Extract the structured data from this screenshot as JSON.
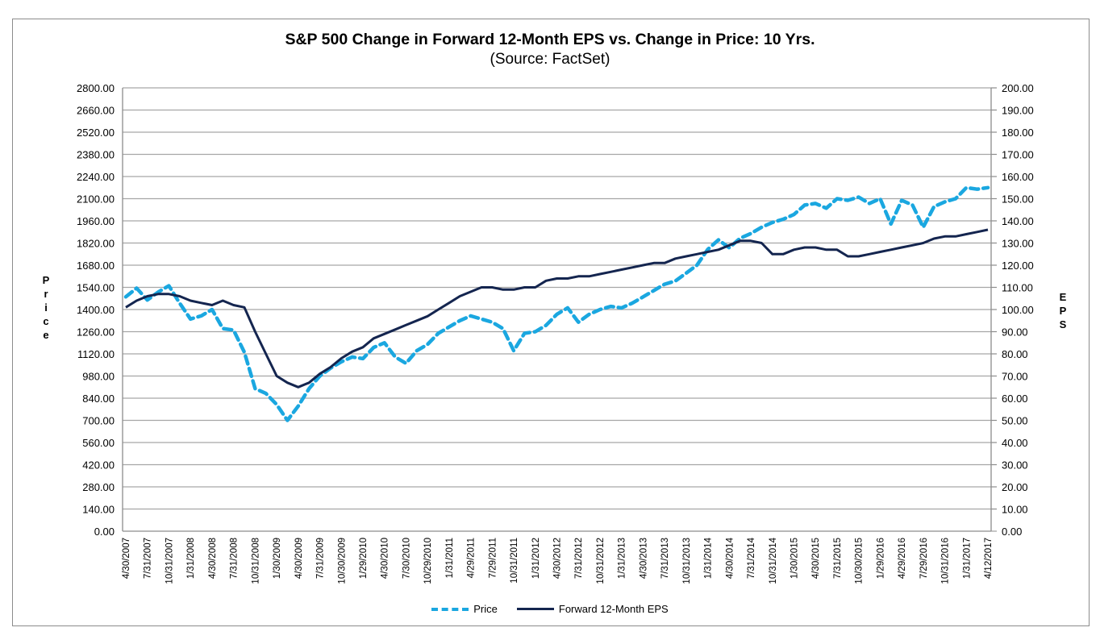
{
  "chart_data": {
    "type": "line",
    "title": "S&P 500 Change in Forward 12-Month EPS vs. Change in Price: 10 Yrs.",
    "subtitle": "(Source: FactSet)",
    "ylabel_left": "Price",
    "ylabel_right": "EPS",
    "xlabel": "",
    "ylim_left": [
      0,
      2800
    ],
    "ylim_right": [
      0,
      200
    ],
    "yticks_left": [
      "0.00",
      "140.00",
      "280.00",
      "420.00",
      "560.00",
      "700.00",
      "840.00",
      "980.00",
      "1120.00",
      "1260.00",
      "1400.00",
      "1540.00",
      "1680.00",
      "1820.00",
      "1960.00",
      "2100.00",
      "2240.00",
      "2380.00",
      "2520.00",
      "2660.00",
      "2800.00"
    ],
    "yticks_right": [
      "0.00",
      "10.00",
      "20.00",
      "30.00",
      "40.00",
      "50.00",
      "60.00",
      "70.00",
      "80.00",
      "90.00",
      "100.00",
      "110.00",
      "120.00",
      "130.00",
      "140.00",
      "150.00",
      "160.00",
      "170.00",
      "180.00",
      "190.00",
      "200.00"
    ],
    "grid": true,
    "legend_position": "bottom",
    "categories": [
      "4/30/2007",
      "7/31/2007",
      "10/31/2007",
      "1/31/2008",
      "4/30/2008",
      "7/31/2008",
      "10/31/2008",
      "1/30/2009",
      "4/30/2009",
      "7/31/2009",
      "10/30/2009",
      "1/29/2010",
      "4/30/2010",
      "7/30/2010",
      "10/29/2010",
      "1/31/2011",
      "4/29/2011",
      "7/29/2011",
      "10/31/2011",
      "1/31/2012",
      "4/30/2012",
      "7/31/2012",
      "10/31/2012",
      "1/31/2013",
      "4/30/2013",
      "7/31/2013",
      "10/31/2013",
      "1/31/2014",
      "4/30/2014",
      "7/31/2014",
      "10/31/2014",
      "1/30/2015",
      "4/30/2015",
      "7/31/2015",
      "10/30/2015",
      "1/29/2016",
      "4/29/2016",
      "7/29/2016",
      "10/31/2016",
      "1/31/2017",
      "4/12/2017"
    ],
    "x_index": [
      0,
      0.5,
      1,
      1.5,
      2,
      2.5,
      3,
      3.5,
      4,
      4.5,
      5,
      5.5,
      6,
      6.5,
      7,
      7.5,
      8,
      8.5,
      9,
      9.5,
      10,
      10.5,
      11,
      11.5,
      12,
      12.5,
      13,
      13.5,
      14,
      14.5,
      15,
      15.5,
      16,
      16.5,
      17,
      17.5,
      18,
      18.5,
      19,
      19.5,
      20,
      20.5,
      21,
      21.5,
      22,
      22.5,
      23,
      23.5,
      24,
      24.5,
      25,
      25.5,
      26,
      26.5,
      27,
      27.5,
      28,
      28.5,
      29,
      29.5,
      30,
      30.5,
      31,
      31.5,
      32,
      32.5,
      33,
      33.5,
      34,
      34.5,
      35,
      35.5,
      36,
      36.5,
      37,
      37.5,
      38,
      38.5,
      39,
      39.5,
      40
    ],
    "series": [
      {
        "name": "Price",
        "axis": "left",
        "color": "#1aa7e0",
        "style": "dashed",
        "values": [
          1480,
          1535,
          1460,
          1510,
          1550,
          1440,
          1340,
          1360,
          1400,
          1280,
          1270,
          1130,
          900,
          870,
          800,
          700,
          790,
          900,
          980,
          1030,
          1070,
          1100,
          1090,
          1160,
          1190,
          1100,
          1060,
          1140,
          1180,
          1250,
          1290,
          1330,
          1360,
          1340,
          1320,
          1280,
          1140,
          1250,
          1260,
          1300,
          1370,
          1410,
          1320,
          1370,
          1400,
          1420,
          1410,
          1440,
          1480,
          1520,
          1560,
          1580,
          1630,
          1680,
          1780,
          1840,
          1790,
          1850,
          1880,
          1920,
          1950,
          1970,
          2000,
          2060,
          2070,
          2040,
          2100,
          2090,
          2110,
          2070,
          2100,
          1940,
          2090,
          2060,
          1920,
          2050,
          2080,
          2100,
          2170,
          2160,
          2170
        ]
      },
      {
        "name": "Forward 12-Month EPS",
        "axis": "right",
        "color": "#14254f",
        "style": "solid",
        "values": [
          101,
          104,
          106,
          107,
          107,
          106,
          104,
          103,
          102,
          104,
          102,
          101,
          90,
          80,
          70,
          67,
          65,
          67,
          71,
          74,
          78,
          81,
          83,
          87,
          89,
          91,
          93,
          95,
          97,
          100,
          103,
          106,
          108,
          110,
          110,
          109,
          109,
          110,
          110,
          113,
          114,
          114,
          115,
          115,
          116,
          117,
          118,
          119,
          120,
          121,
          121,
          123,
          124,
          125,
          126,
          127,
          129,
          131,
          131,
          130,
          125,
          125,
          127,
          128,
          128,
          127,
          127,
          124,
          124,
          125,
          126,
          127,
          128,
          129,
          130,
          132,
          133,
          133,
          134,
          135,
          136
        ]
      }
    ]
  },
  "legend": {
    "price_label": "Price",
    "eps_label": "Forward 12-Month EPS"
  }
}
